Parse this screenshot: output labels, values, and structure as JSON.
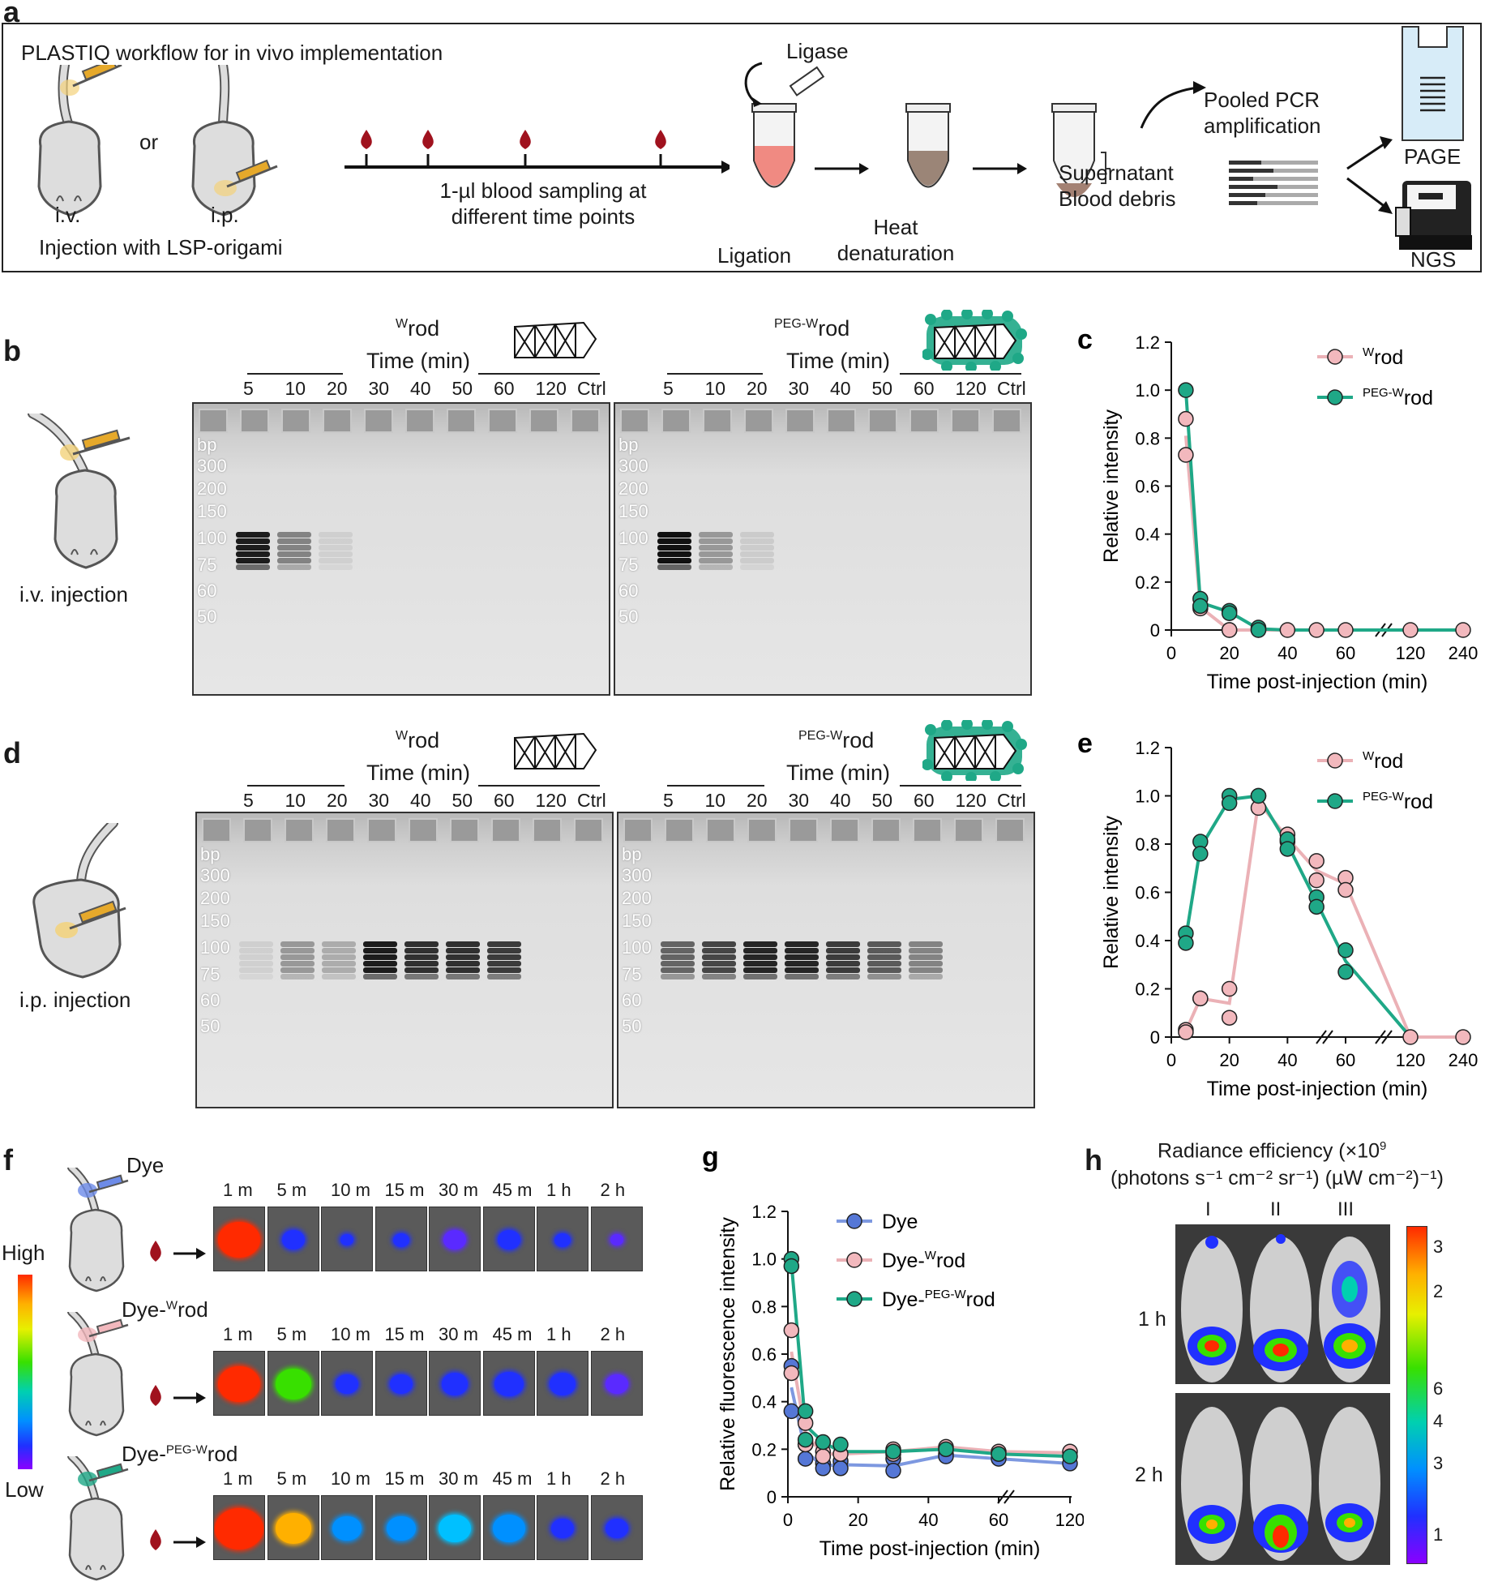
{
  "panel_a": {
    "letter": "a",
    "workflow_title": "PLASTIQ workflow for in vivo implementation",
    "or": "or",
    "iv": "i.v.",
    "ip": "i.p.",
    "injection": "Injection with LSP-origami",
    "sampling": [
      "1-µl blood sampling at",
      "different time points"
    ],
    "ligase": "Ligase",
    "ligation": "Ligation",
    "heat": [
      "Heat",
      "denaturation"
    ],
    "supernatant": "Supernatant",
    "debris": "Blood debris",
    "pcr": [
      "Pooled PCR",
      "amplification"
    ],
    "page": "PAGE",
    "ngs": "NGS"
  },
  "panel_b": {
    "letter": "b",
    "label": "i.v. injection",
    "gel1_title_sup": "W",
    "gel1_title": "rod",
    "gel2_title_sup": "PEG-W",
    "gel2_title": "rod",
    "time_label": "Time (min)",
    "lanes": [
      "5",
      "10",
      "20",
      "30",
      "40",
      "50",
      "60",
      "120",
      "Ctrl"
    ],
    "ladder": [
      "bp",
      "300",
      "200",
      "150",
      "100",
      "75",
      "60",
      "50"
    ]
  },
  "panel_d": {
    "letter": "d",
    "label": "i.p. injection",
    "gel1_title_sup": "W",
    "gel1_title": "rod",
    "gel2_title_sup": "PEG-W",
    "gel2_title": "rod",
    "time_label": "Time (min)",
    "lanes": [
      "5",
      "10",
      "20",
      "30",
      "40",
      "50",
      "60",
      "120",
      "Ctrl"
    ],
    "ladder": [
      "bp",
      "300",
      "200",
      "150",
      "100",
      "75",
      "60",
      "50"
    ]
  },
  "panel_f": {
    "letter": "f",
    "high": "High",
    "low": "Low",
    "rows": [
      {
        "label": "Dye",
        "sup": ""
      },
      {
        "label": "Dye-",
        "sup": "W",
        "suffix": "rod"
      },
      {
        "label": "Dye-",
        "sup": "PEG-W",
        "suffix": "rod"
      }
    ],
    "times": [
      "1 m",
      "5 m",
      "10 m",
      "15 m",
      "30 m",
      "45 m",
      "1 h",
      "2 h"
    ]
  },
  "panel_h": {
    "letter": "h",
    "title_line1": "Radiance efficiency (×10",
    "title_sup": "9",
    "title_line2": "(photons s⁻¹ cm⁻² sr⁻¹) (µW cm⁻²)⁻¹)",
    "columns": [
      "I",
      "II",
      "III"
    ],
    "rows": [
      "1 h",
      "2 h"
    ],
    "scale_ticks": [
      "3",
      "2",
      "6",
      "4",
      "3",
      "1"
    ]
  },
  "colors": {
    "wrod": "#f2b8bd",
    "wrod_line": "#ebb1b6",
    "pegwrod": "#1fa887",
    "dye": "#5577d6",
    "dye_line": "#7d98e0"
  },
  "chart_data": [
    {
      "id": "c",
      "type": "line",
      "letter": "c",
      "xlabel": "Time post-injection (min)",
      "ylabel": "Relative intensity",
      "xticks": [
        "0",
        "20",
        "40",
        "60",
        "120",
        "240"
      ],
      "yticks": [
        "0",
        "0.2",
        "0.4",
        "0.6",
        "0.8",
        "1.0",
        "1.2"
      ],
      "ylim": [
        0,
        1.2
      ],
      "legend": [
        {
          "sup": "W",
          "text": "rod"
        },
        {
          "sup": "PEG-W",
          "text": "rod"
        }
      ],
      "series": [
        {
          "name": "Wrod",
          "x": [
            5,
            5,
            10,
            10,
            20,
            20,
            30,
            40,
            50,
            60,
            120,
            240
          ],
          "y": [
            0.88,
            0.73,
            0.09,
            0.1,
            0,
            0,
            0,
            0,
            0,
            0,
            0,
            0
          ],
          "mean_x": [
            5,
            10,
            20,
            30,
            40,
            50,
            60,
            120,
            240
          ],
          "mean_y": [
            0.81,
            0.095,
            0,
            0,
            0,
            0,
            0,
            0,
            0
          ]
        },
        {
          "name": "PEG-Wrod",
          "x": [
            5,
            10,
            10,
            20,
            20,
            30,
            30
          ],
          "y": [
            1.0,
            0.13,
            0.1,
            0.08,
            0.07,
            0.01,
            0.0
          ],
          "mean_x": [
            5,
            10,
            20,
            30,
            40,
            50,
            60,
            120,
            240
          ],
          "mean_y": [
            1.0,
            0.115,
            0.075,
            0.005,
            0,
            0,
            0,
            0,
            0
          ]
        }
      ]
    },
    {
      "id": "e",
      "type": "line",
      "letter": "e",
      "xlabel": "Time post-injection (min)",
      "ylabel": "Relative intensity",
      "xticks": [
        "0",
        "20",
        "40",
        "60",
        "120",
        "240"
      ],
      "yticks": [
        "0",
        "0.2",
        "0.4",
        "0.6",
        "0.8",
        "1.0",
        "1.2"
      ],
      "ylim": [
        0,
        1.2
      ],
      "legend": [
        {
          "sup": "W",
          "text": "rod"
        },
        {
          "sup": "PEG-W",
          "text": "rod"
        }
      ],
      "series": [
        {
          "name": "Wrod",
          "x": [
            5,
            5,
            10,
            10,
            20,
            20,
            30,
            30,
            40,
            40,
            50,
            50,
            60,
            60,
            120,
            240
          ],
          "y": [
            0.03,
            0.02,
            0.16,
            0.16,
            0.2,
            0.08,
            1.0,
            0.95,
            0.84,
            0.81,
            0.73,
            0.65,
            0.66,
            0.61,
            0,
            0
          ],
          "mean_x": [
            5,
            10,
            20,
            30,
            40,
            50,
            60,
            120,
            240
          ],
          "mean_y": [
            0.025,
            0.16,
            0.14,
            0.975,
            0.825,
            0.69,
            0.635,
            0,
            0
          ]
        },
        {
          "name": "PEG-Wrod",
          "x": [
            5,
            5,
            10,
            10,
            20,
            20,
            30,
            40,
            40,
            50,
            50,
            60,
            60
          ],
          "y": [
            0.43,
            0.39,
            0.81,
            0.76,
            1.0,
            0.97,
            1.0,
            0.82,
            0.78,
            0.58,
            0.54,
            0.36,
            0.27
          ],
          "mean_x": [
            5,
            10,
            20,
            30,
            40,
            50,
            60,
            120
          ],
          "mean_y": [
            0.41,
            0.785,
            0.985,
            1.0,
            0.8,
            0.56,
            0.315,
            0
          ]
        }
      ]
    },
    {
      "id": "g",
      "type": "line",
      "letter": "g",
      "xlabel": "Time post-injection (min)",
      "ylabel": "Relative fluorescence intensity",
      "xticks": [
        "0",
        "20",
        "40",
        "60",
        "120"
      ],
      "yticks": [
        "0",
        "0.2",
        "0.4",
        "0.6",
        "0.8",
        "1.0",
        "1.2"
      ],
      "ylim": [
        0,
        1.2
      ],
      "legend": [
        {
          "pre": "Dye",
          "sup": "",
          "text": ""
        },
        {
          "pre": "Dye-",
          "sup": "W",
          "text": "rod"
        },
        {
          "pre": "Dye-",
          "sup": "PEG-W",
          "text": "rod"
        }
      ],
      "series": [
        {
          "name": "Dye",
          "x": [
            1,
            1,
            5,
            5,
            10,
            10,
            15,
            15,
            30,
            30,
            45,
            45,
            60,
            120
          ],
          "y": [
            0.55,
            0.36,
            0.22,
            0.16,
            0.14,
            0.12,
            0.15,
            0.12,
            0.16,
            0.11,
            0.18,
            0.17,
            0.16,
            0.14
          ],
          "mean_x": [
            1,
            5,
            10,
            15,
            30,
            45,
            60,
            120
          ],
          "mean_y": [
            0.46,
            0.19,
            0.13,
            0.135,
            0.13,
            0.175,
            0.16,
            0.14
          ]
        },
        {
          "name": "Dye-Wrod",
          "x": [
            1,
            1,
            5,
            5,
            10,
            10,
            15,
            30,
            30,
            45,
            60,
            120
          ],
          "y": [
            0.7,
            0.52,
            0.31,
            0.22,
            0.19,
            0.17,
            0.18,
            0.2,
            0.18,
            0.21,
            0.19,
            0.19
          ],
          "mean_x": [
            1,
            5,
            10,
            15,
            30,
            45,
            60,
            120
          ],
          "mean_y": [
            0.61,
            0.265,
            0.18,
            0.18,
            0.19,
            0.21,
            0.19,
            0.185
          ]
        },
        {
          "name": "Dye-PEG-Wrod",
          "x": [
            1,
            1,
            5,
            5,
            10,
            15,
            30,
            45,
            60,
            120
          ],
          "y": [
            1.0,
            0.97,
            0.36,
            0.24,
            0.23,
            0.22,
            0.19,
            0.2,
            0.18,
            0.17
          ],
          "mean_x": [
            1,
            5,
            10,
            15,
            30,
            45,
            60,
            120
          ],
          "mean_y": [
            0.985,
            0.3,
            0.23,
            0.19,
            0.19,
            0.2,
            0.18,
            0.17
          ]
        }
      ]
    }
  ]
}
